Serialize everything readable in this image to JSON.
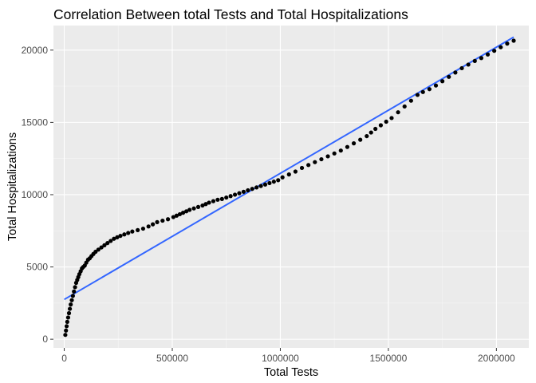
{
  "chart_data": {
    "type": "scatter",
    "title": "Correlation Between total Tests and Total Hospitalizations",
    "xlabel": "Total Tests",
    "ylabel": "Total Hospitalizations",
    "xlim": [
      -50000,
      2150000
    ],
    "ylim": [
      -600,
      21700
    ],
    "x_ticks": [
      0,
      500000,
      1000000,
      1500000,
      2000000
    ],
    "x_tick_labels": [
      "0",
      "500000",
      "1000000",
      "1500000",
      "2000000"
    ],
    "x_minor_ticks": [
      250000,
      750000,
      1250000,
      1750000
    ],
    "y_ticks": [
      0,
      5000,
      10000,
      15000,
      20000
    ],
    "y_tick_labels": [
      "0",
      "5000",
      "10000",
      "15000",
      "20000"
    ],
    "y_minor_ticks": [
      2500,
      7500,
      12500,
      17500
    ],
    "grid": true,
    "legend": "none",
    "colors": {
      "panel_background": "#ebebeb",
      "grid_major": "#ffffff",
      "grid_minor": "#f5f5f5",
      "points": "#000000",
      "fit_line": "#3366ff"
    },
    "series": [
      {
        "type": "points",
        "x": [
          5000,
          8000,
          11000,
          14000,
          18000,
          22000,
          26000,
          30000,
          35000,
          40000,
          45000,
          50000,
          55000,
          60000,
          65000,
          70000,
          76000,
          82000,
          88000,
          95000,
          102000,
          110000,
          118000,
          126000,
          135000,
          145000,
          158000,
          172000,
          186000,
          200000,
          215000,
          230000,
          245000,
          260000,
          278000,
          296000,
          315000,
          340000,
          365000,
          390000,
          410000,
          430000,
          455000,
          480000,
          505000,
          520000,
          535000,
          550000,
          565000,
          580000,
          600000,
          620000,
          640000,
          655000,
          670000,
          690000,
          710000,
          730000,
          750000,
          770000,
          790000,
          810000,
          830000,
          850000,
          870000,
          890000,
          910000,
          930000,
          950000,
          970000,
          990000,
          1010000,
          1040000,
          1070000,
          1100000,
          1130000,
          1160000,
          1190000,
          1220000,
          1250000,
          1280000,
          1310000,
          1340000,
          1370000,
          1400000,
          1420000,
          1440000,
          1465000,
          1490000,
          1515000,
          1545000,
          1575000,
          1605000,
          1635000,
          1660000,
          1690000,
          1720000,
          1750000,
          1780000,
          1810000,
          1840000,
          1870000,
          1900000,
          1930000,
          1960000,
          1990000,
          2020000,
          2050000,
          2080000
        ],
        "y": [
          300,
          600,
          900,
          1200,
          1500,
          1800,
          2100,
          2400,
          2700,
          3000,
          3300,
          3600,
          3900,
          4100,
          4300,
          4500,
          4700,
          4900,
          5000,
          5100,
          5300,
          5500,
          5600,
          5750,
          5900,
          6050,
          6200,
          6350,
          6500,
          6650,
          6800,
          6950,
          7050,
          7150,
          7250,
          7350,
          7450,
          7550,
          7650,
          7800,
          7950,
          8100,
          8200,
          8300,
          8450,
          8550,
          8650,
          8750,
          8850,
          8950,
          9050,
          9150,
          9250,
          9350,
          9450,
          9550,
          9650,
          9700,
          9800,
          9900,
          10000,
          10100,
          10200,
          10300,
          10400,
          10500,
          10600,
          10700,
          10800,
          10900,
          11000,
          11200,
          11400,
          11600,
          11850,
          12050,
          12250,
          12450,
          12650,
          12850,
          13050,
          13300,
          13550,
          13800,
          14050,
          14300,
          14550,
          14800,
          15050,
          15300,
          15700,
          16100,
          16500,
          16900,
          17100,
          17300,
          17550,
          17850,
          18150,
          18450,
          18750,
          19000,
          19250,
          19450,
          19700,
          19950,
          20200,
          20450,
          20650
        ]
      },
      {
        "type": "fit_line",
        "x": [
          0,
          2080000
        ],
        "y": [
          2750,
          20900
        ]
      }
    ]
  }
}
